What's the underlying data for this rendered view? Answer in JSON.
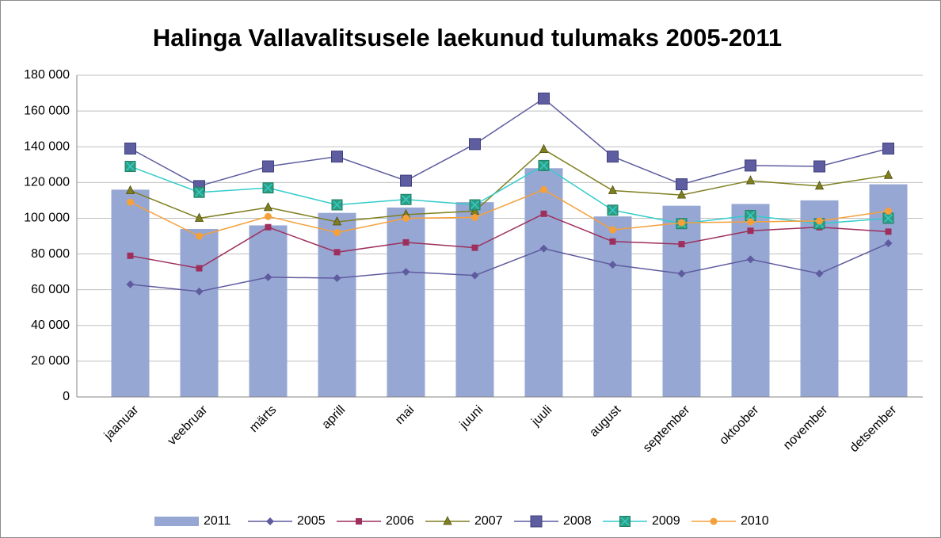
{
  "chart_data": {
    "type": "combo",
    "title": "Halinga Vallavalitsusele laekunud tulumaks 2005-2011",
    "categories": [
      "jaanuar",
      "veebruar",
      "märts",
      "aprill",
      "mai",
      "juuni",
      "juuli",
      "august",
      "september",
      "oktoober",
      "november",
      "detsember"
    ],
    "ylim": [
      0,
      180000
    ],
    "yticks": [
      0,
      {
        "value": 20000,
        "label": "20 000"
      },
      {
        "value": 40000,
        "label": "40 000"
      },
      {
        "value": 60000,
        "label": "60 000"
      },
      {
        "value": 80000,
        "label": "80 000"
      },
      {
        "value": 100000,
        "label": "100 000"
      },
      {
        "value": 120000,
        "label": "120 000"
      },
      {
        "value": 140000,
        "label": "140 000"
      },
      {
        "value": 160000,
        "label": "160 000"
      },
      {
        "value": 180000,
        "label": "180 000"
      }
    ],
    "grid": true,
    "legend": "bottom",
    "series": [
      {
        "name": "2011",
        "type": "bar",
        "color": "#97a7d3",
        "values": [
          116000,
          94000,
          96000,
          103000,
          106000,
          109000,
          128000,
          101000,
          107000,
          108000,
          110000,
          119000
        ]
      },
      {
        "name": "2005",
        "type": "line",
        "marker": "diamond",
        "color": "#5f5b9f",
        "values": [
          63000,
          59000,
          67000,
          66500,
          70000,
          68000,
          83000,
          74000,
          69000,
          77000,
          69000,
          86000
        ]
      },
      {
        "name": "2006",
        "type": "line",
        "marker": "square",
        "color": "#9e2f5c",
        "values": [
          79000,
          72000,
          95000,
          81000,
          86500,
          83500,
          102500,
          87000,
          85500,
          93000,
          95000,
          92500
        ]
      },
      {
        "name": "2007",
        "type": "line",
        "marker": "triangle",
        "color": "#7f7f20",
        "values": [
          115500,
          100000,
          106000,
          98000,
          102000,
          104000,
          138500,
          115500,
          113000,
          121000,
          118000,
          124000
        ]
      },
      {
        "name": "2008",
        "type": "line",
        "marker": "bigsquare",
        "color": "#5e5d9f",
        "values": [
          139000,
          118000,
          129000,
          134500,
          121000,
          141500,
          167000,
          134500,
          119000,
          129500,
          129000,
          139000
        ]
      },
      {
        "name": "2009",
        "type": "line",
        "marker": "xsquare",
        "color": "#33cccc",
        "values": [
          129000,
          114500,
          117000,
          107500,
          110500,
          107500,
          129500,
          104500,
          97000,
          101500,
          97000,
          100000
        ]
      },
      {
        "name": "2010",
        "type": "line",
        "marker": "circle",
        "color": "#f5a03a",
        "values": [
          109000,
          90000,
          101000,
          92000,
          100000,
          100500,
          116000,
          93500,
          97500,
          98000,
          98500,
          104000
        ]
      }
    ]
  }
}
